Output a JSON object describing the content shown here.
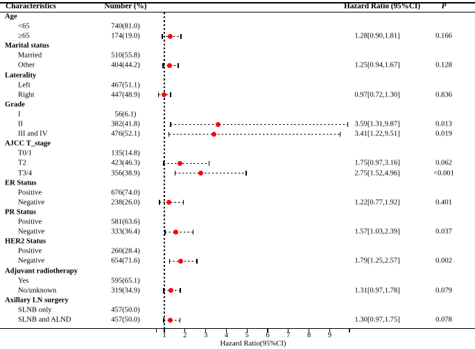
{
  "header": {
    "characteristics": "Characteristics",
    "number": "Number (%)",
    "hazard_ratio": "Hazard Ratio (95%CI)",
    "p": "P"
  },
  "axis": {
    "title": "Hazard Ratio(95%CI)",
    "ticks": [
      1,
      2,
      3,
      4,
      5,
      6,
      7,
      8,
      9
    ],
    "min": 0.61,
    "max": 9.96,
    "ref_line": 1
  },
  "colors": {
    "marker": "#fe0000",
    "line": "#000000",
    "text": "#000000"
  },
  "chart_data": {
    "type": "scatter",
    "variant": "forest-plot",
    "title": "",
    "xlabel": "Hazard Ratio(95%CI)",
    "xlim": [
      0.61,
      9.96
    ],
    "reference_x": 1,
    "grid": false,
    "rows": [
      {
        "label": "Age",
        "group": true
      },
      {
        "label": "<65",
        "number": "740(81.0)"
      },
      {
        "label": "≥65",
        "number": "174(19.0)",
        "hr": 1.28,
        "lo": 0.9,
        "hi": 1.81,
        "hr_text": "1.28[0.90,1.81]",
        "p": "0.166"
      },
      {
        "label": "Marital status",
        "group": true
      },
      {
        "label": "Married",
        "number": "510(55.8)"
      },
      {
        "label": "Other",
        "number": "404(44.2)",
        "hr": 1.25,
        "lo": 0.94,
        "hi": 1.67,
        "hr_text": "1.25[0.94,1.67]",
        "p": "0.128"
      },
      {
        "label": "Laterality",
        "group": true
      },
      {
        "label": "Left",
        "number": "467(51.1)"
      },
      {
        "label": "Right",
        "number": "447(48.9)",
        "hr": 0.97,
        "lo": 0.72,
        "hi": 1.3,
        "hr_text": "0.97[0.72,1.30]",
        "p": "0.836"
      },
      {
        "label": "Grade",
        "group": true
      },
      {
        "label": "I",
        "number": "56(6.1)"
      },
      {
        "label": "II",
        "number": "382(41.8)",
        "hr": 3.59,
        "lo": 1.31,
        "hi": 9.87,
        "hr_text": "3.59[1.31,9.87]",
        "p": "0.013"
      },
      {
        "label": "III and IV",
        "number": "476(52.1)",
        "hr": 3.41,
        "lo": 1.22,
        "hi": 9.51,
        "hr_text": "3.41[1.22,9.51]",
        "p": "0.019"
      },
      {
        "label": "AJCC T_stage",
        "group": true
      },
      {
        "label": "T0/1",
        "number": "135(14.8)"
      },
      {
        "label": "T2",
        "number": "423(46.3)",
        "hr": 1.75,
        "lo": 0.97,
        "hi": 3.16,
        "hr_text": "1.75[0.97,3.16]",
        "p": "0.062"
      },
      {
        "label": "T3/4",
        "number": "356(38.9)",
        "hr": 2.75,
        "lo": 1.52,
        "hi": 4.96,
        "hr_text": "2.75[1.52,4.96]",
        "p": "<0.001"
      },
      {
        "label": "ER Status",
        "group": true
      },
      {
        "label": "Positive",
        "number": "676(74.0)"
      },
      {
        "label": "Negative",
        "number": "238(26.0)",
        "hr": 1.22,
        "lo": 0.77,
        "hi": 1.92,
        "hr_text": "1.22[0.77,1.92]",
        "p": "0.401"
      },
      {
        "label": "PR Status",
        "group": true
      },
      {
        "label": "Positive",
        "number": "581(63.6)"
      },
      {
        "label": "Negative",
        "number": "333(36.4)",
        "hr": 1.57,
        "lo": 1.03,
        "hi": 2.39,
        "hr_text": "1.57[1.03,2.39]",
        "p": "0.037"
      },
      {
        "label": "HER2 Status",
        "group": true
      },
      {
        "label": "Positive",
        "number": "260(28.4)"
      },
      {
        "label": "Negative",
        "number": "654(71.6)",
        "hr": 1.79,
        "lo": 1.25,
        "hi": 2.57,
        "hr_text": "1.79[1.25,2.57]",
        "p": "0.002"
      },
      {
        "label": "Adjuvant radiotherapy",
        "group": true
      },
      {
        "label": "Yes",
        "number": "595(65.1)"
      },
      {
        "label": "No/unknown",
        "number": "319(34.9)",
        "hr": 1.31,
        "lo": 0.97,
        "hi": 1.78,
        "hr_text": "1.31[0.97,1.78]",
        "p": "0.079"
      },
      {
        "label": "Axillary LN surgery",
        "group": true
      },
      {
        "label": "SLNB only",
        "number": "457(50.0)"
      },
      {
        "label": "SLNB and ALND",
        "number": "457(50.0)",
        "hr": 1.3,
        "lo": 0.97,
        "hi": 1.75,
        "hr_text": "1.30[0.97,1.75]",
        "p": "0.078"
      }
    ]
  }
}
